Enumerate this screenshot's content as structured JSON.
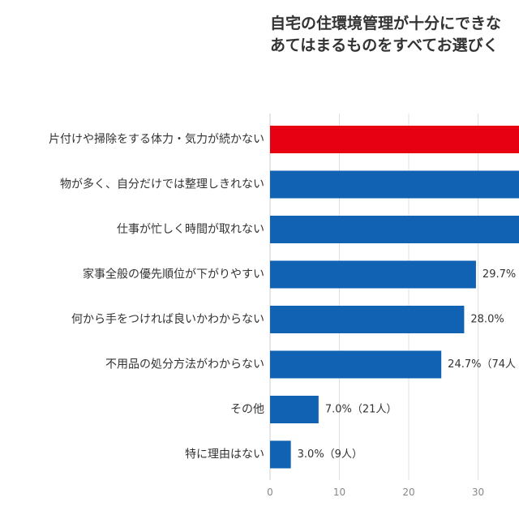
{
  "chart_data": {
    "type": "bar",
    "orientation": "horizontal",
    "title_lines": [
      "自宅の住環境管理が十分にできな",
      "あてはまるものをすべてお選びく"
    ],
    "categories": [
      "片付けや掃除をする体力・気力が続かない",
      "物が多く、自分だけでは整理しきれない",
      "仕事が忙しく時間が取れない",
      "家事全般の優先順位が下がりやすい",
      "何から手をつければ良いかわからない",
      "不用品の処分方法がわからない",
      "その他",
      "特に理由はない"
    ],
    "values": [
      null,
      null,
      null,
      29.7,
      28.0,
      24.7,
      7.0,
      3.0
    ],
    "bar_extends_past_edge": [
      true,
      true,
      true,
      false,
      false,
      false,
      false,
      false
    ],
    "data_labels": [
      "",
      "",
      "",
      "29.7%",
      "28.0%",
      "24.7%（74人",
      "7.0%（21人）",
      "3.0%（9人）"
    ],
    "bar_colors": [
      "#e60012",
      "#1262b3",
      "#1262b3",
      "#1262b3",
      "#1262b3",
      "#1262b3",
      "#1262b3",
      "#1262b3"
    ],
    "x_ticks": [
      0,
      10,
      20,
      30
    ],
    "xlim": [
      0,
      36
    ],
    "xlabel": "",
    "ylabel": "",
    "grid": true
  },
  "colors": {
    "highlight": "#e60012",
    "bar": "#1262b3",
    "text": "#333333",
    "grid": "#e0e0e0"
  }
}
